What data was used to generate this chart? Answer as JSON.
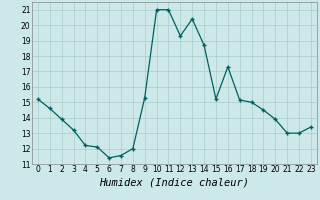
{
  "x": [
    0,
    1,
    2,
    3,
    4,
    5,
    6,
    7,
    8,
    9,
    10,
    11,
    12,
    13,
    14,
    15,
    16,
    17,
    18,
    19,
    20,
    21,
    22,
    23
  ],
  "y": [
    15.2,
    14.6,
    13.9,
    13.2,
    12.2,
    12.1,
    11.4,
    11.55,
    12.0,
    15.3,
    21.0,
    21.0,
    19.3,
    20.4,
    18.7,
    15.2,
    17.3,
    15.15,
    15.0,
    14.5,
    13.9,
    13.0,
    13.0,
    13.4
  ],
  "xlabel": "Humidex (Indice chaleur)",
  "xlim": [
    -0.5,
    23.5
  ],
  "ylim": [
    11,
    21.5
  ],
  "yticks": [
    11,
    12,
    13,
    14,
    15,
    16,
    17,
    18,
    19,
    20,
    21
  ],
  "xticks": [
    0,
    1,
    2,
    3,
    4,
    5,
    6,
    7,
    8,
    9,
    10,
    11,
    12,
    13,
    14,
    15,
    16,
    17,
    18,
    19,
    20,
    21,
    22,
    23
  ],
  "line_color": "#006060",
  "marker": "+",
  "bg_color": "#cce8e8",
  "grid_color": "#aacccc",
  "xlabel_fontsize": 7.5,
  "tick_fontsize": 5.5
}
